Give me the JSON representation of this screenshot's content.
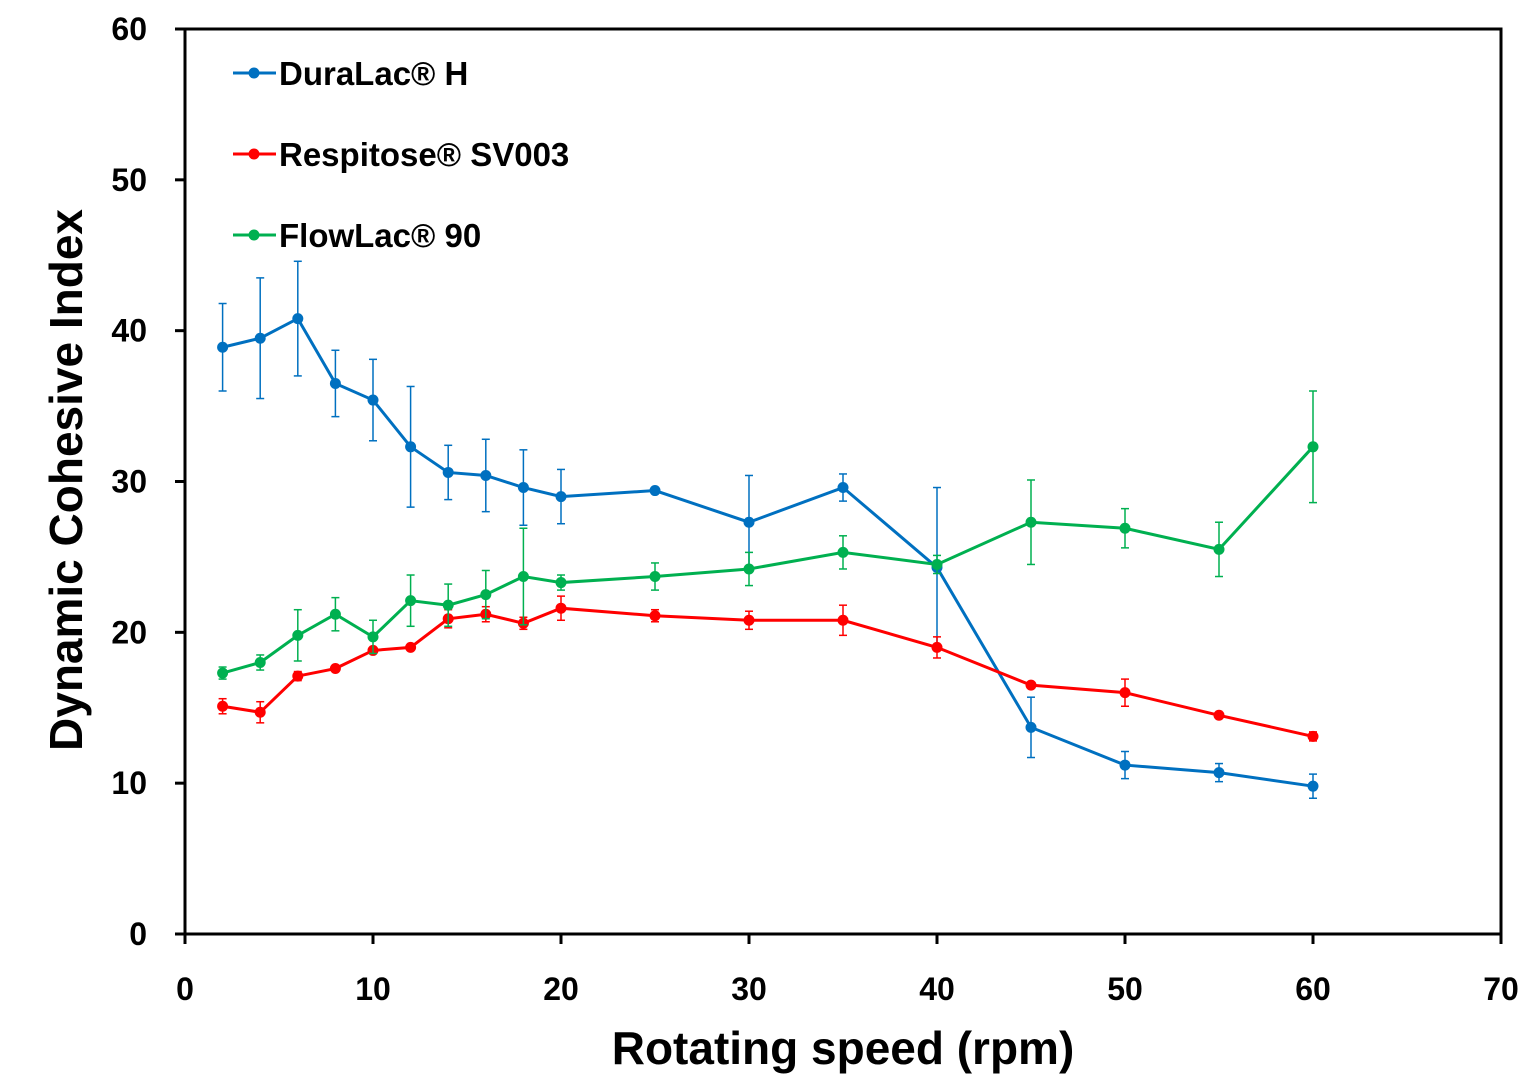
{
  "chart_data": {
    "type": "line",
    "title": "",
    "xlabel": "Rotating speed (rpm)",
    "ylabel": "Dynamic Cohesive Index",
    "xlim": [
      0,
      70
    ],
    "ylim": [
      0,
      60
    ],
    "xticks": [
      "0",
      "10",
      "20",
      "30",
      "40",
      "50",
      "60",
      "70"
    ],
    "yticks": [
      "0",
      "10",
      "20",
      "30",
      "40",
      "50",
      "60"
    ],
    "grid": false,
    "legend_position": "top-left",
    "error_bars": true,
    "x": [
      2,
      4,
      6,
      8,
      10,
      12,
      14,
      16,
      18,
      20,
      25,
      30,
      35,
      40,
      45,
      50,
      55,
      60
    ],
    "series": [
      {
        "name": "DuraLac® H",
        "color": "#0070C0",
        "values": [
          38.9,
          39.5,
          40.8,
          36.5,
          35.4,
          32.3,
          30.6,
          30.4,
          29.6,
          29.0,
          29.4,
          27.3,
          29.6,
          24.3,
          13.7,
          11.2,
          10.7,
          9.8
        ],
        "errors": [
          2.9,
          4.0,
          3.8,
          2.2,
          2.7,
          4.0,
          1.8,
          2.4,
          2.5,
          1.8,
          0.2,
          3.1,
          0.9,
          5.3,
          2.0,
          0.9,
          0.6,
          0.8
        ]
      },
      {
        "name": "Respitose® SV003",
        "color": "#FF0000",
        "values": [
          15.1,
          14.7,
          17.1,
          17.6,
          18.8,
          19.0,
          20.9,
          21.2,
          20.6,
          21.6,
          21.1,
          20.8,
          20.8,
          19.0,
          16.5,
          16.0,
          14.5,
          13.1
        ],
        "errors": [
          0.5,
          0.7,
          0.3,
          0.1,
          0.1,
          0.1,
          0.6,
          0.5,
          0.4,
          0.8,
          0.4,
          0.6,
          1.0,
          0.7,
          0.1,
          0.9,
          0.1,
          0.3
        ]
      },
      {
        "name": "FlowLac® 90",
        "color": "#00B050",
        "values": [
          17.3,
          18.0,
          19.8,
          21.2,
          19.7,
          22.1,
          21.8,
          22.5,
          23.7,
          23.3,
          23.7,
          24.2,
          25.3,
          24.5,
          27.3,
          26.9,
          25.5,
          32.3
        ],
        "errors": [
          0.4,
          0.5,
          1.7,
          1.1,
          1.1,
          1.7,
          1.4,
          1.6,
          3.2,
          0.5,
          0.9,
          1.1,
          1.1,
          0.6,
          2.8,
          1.3,
          1.8,
          3.7
        ]
      }
    ]
  }
}
